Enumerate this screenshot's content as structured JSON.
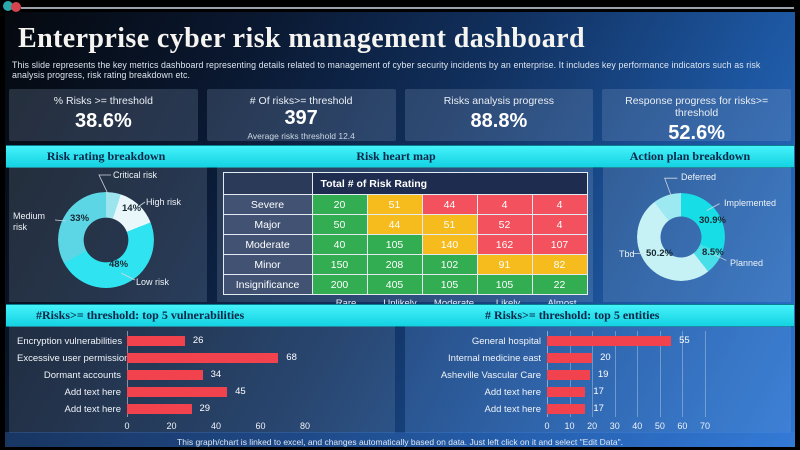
{
  "slide": {
    "title": "Enterprise cyber risk management dashboard",
    "subtitle": "This slide represents the key metrics dashboard representing details related to management  of cyber security incidents by an enterprise. It includes key performance indicators such as risk analysis progress, risk rating breakdown etc.",
    "footer": "This graph/chart is linked to excel, and changes automatically based on data. Just left click on it and select \"Edit Data\".",
    "colors": {
      "accent_cyan": "#23e5ef",
      "bar_red": "#f2424d",
      "background_blue": "#2f77d2"
    }
  },
  "kpis": [
    {
      "label": "% Risks >= threshold",
      "value": "38.6%"
    },
    {
      "label": "# Of risks>= threshold",
      "value": "397",
      "caption": "Average risks threshold 12.4"
    },
    {
      "label": "Risks analysis progress",
      "value": "88.8%"
    },
    {
      "label": "Response progress for risks>= threshold",
      "value": "52.6%"
    }
  ],
  "chart_data": [
    {
      "id": "risk_rating_donut",
      "type": "pie",
      "title": "Risk rating breakdown",
      "slices": [
        {
          "label": "Critical risk",
          "pct": 5,
          "pct_label": "",
          "color": "#9ce5ef"
        },
        {
          "label": "High risk",
          "pct": 14,
          "pct_label": "14%",
          "color": "#e9f7fb"
        },
        {
          "label": "Low risk",
          "pct": 48,
          "pct_label": "48%",
          "color": "#2fe3f0"
        },
        {
          "label": "Medium risk",
          "pct": 33,
          "pct_label": "33%",
          "color": "#5cd5e4"
        }
      ]
    },
    {
      "id": "risk_heat_map",
      "type": "heatmap",
      "title": "Risk heart map",
      "corner_header": "Total # of Risk Rating",
      "row_labels": [
        "Severe",
        "Major",
        "Moderate",
        "Minor",
        "Insignificance"
      ],
      "col_labels": [
        "Rare",
        "Unlikely",
        "Moderate",
        "Likely",
        "Almost certain"
      ],
      "values": [
        [
          20,
          51,
          44,
          4,
          4
        ],
        [
          50,
          44,
          51,
          52,
          4
        ],
        [
          40,
          105,
          140,
          162,
          107
        ],
        [
          150,
          208,
          102,
          91,
          82
        ],
        [
          200,
          405,
          105,
          105,
          22
        ]
      ],
      "cell_colors": [
        [
          "g",
          "y",
          "r",
          "r",
          "r"
        ],
        [
          "g",
          "y",
          "y",
          "r",
          "r"
        ],
        [
          "g",
          "g",
          "y",
          "r",
          "r"
        ],
        [
          "g",
          "g",
          "g",
          "y",
          "y"
        ],
        [
          "g",
          "g",
          "g",
          "g",
          "g"
        ]
      ],
      "palette": {
        "g": "#33ad51",
        "y": "#f6bb1d",
        "r": "#f4515e"
      }
    },
    {
      "id": "action_plan_donut",
      "type": "pie",
      "title": "Action plan breakdown",
      "slices": [
        {
          "label": "Implemented",
          "pct": 30.9,
          "pct_label": "30.9%",
          "color": "#16dde6"
        },
        {
          "label": "Planned",
          "pct": 8.5,
          "pct_label": "8.5%",
          "color": "#48dfe8"
        },
        {
          "label": "Tbd",
          "pct": 50.2,
          "pct_label": "50.2%",
          "color": "#c6f2f6"
        },
        {
          "label": "Deferred",
          "pct": 10.4,
          "pct_label": "",
          "color": "#9de9f1"
        }
      ]
    },
    {
      "id": "top_vulnerabilities",
      "type": "bar",
      "orientation": "horizontal",
      "title": "#Risks>= threshold: top 5 vulnerabilities",
      "categories": [
        "Encryption vulnerabilities",
        "Excessive user permissions",
        "Dormant accounts",
        "Add text here",
        "Add text here"
      ],
      "values": [
        26,
        68,
        34,
        45,
        29
      ],
      "xticks": [
        0,
        20,
        40,
        60,
        80
      ],
      "xlim": [
        0,
        80
      ],
      "grid": false,
      "bar_color": "#f2424d"
    },
    {
      "id": "top_entities",
      "type": "bar",
      "orientation": "horizontal",
      "title": "# Risks>= threshold: top 5 entities",
      "categories": [
        "General hospital",
        "Internal medicine east",
        "Asheville Vascular Care",
        "Add text here",
        "Add text here"
      ],
      "values": [
        55,
        20,
        19,
        17,
        17
      ],
      "xticks": [
        0,
        10,
        20,
        30,
        40,
        50,
        60,
        70
      ],
      "xlim": [
        0,
        70
      ],
      "grid": true,
      "bar_color": "#f2424d"
    }
  ]
}
